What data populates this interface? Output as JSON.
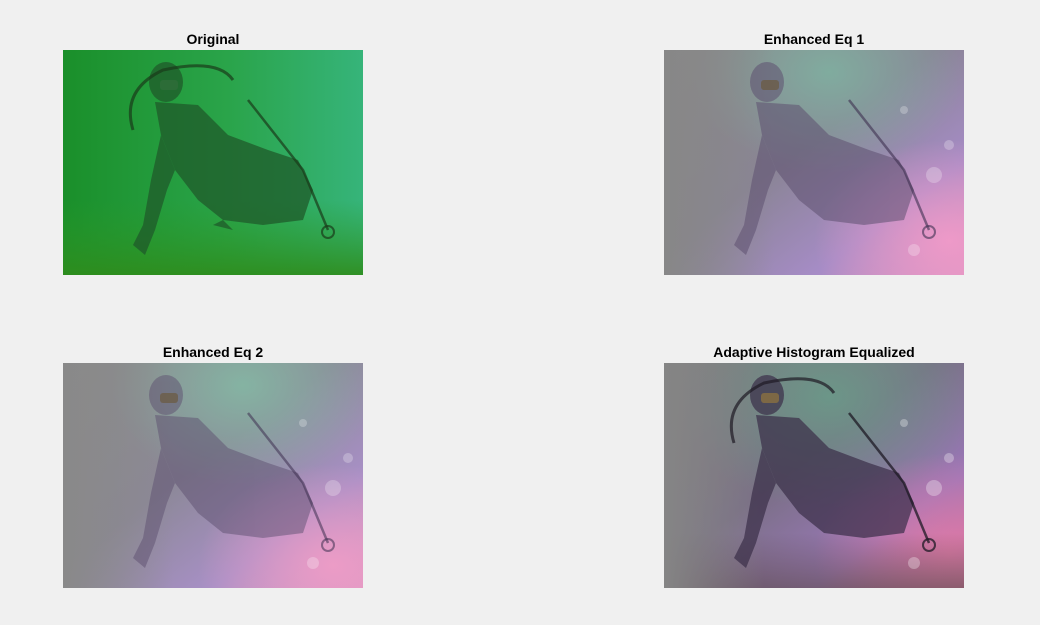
{
  "figure": {
    "background": "#f0f0f0",
    "panels": [
      {
        "id": "original",
        "title": "Original",
        "image": "underwater scuba diver photo, green tint"
      },
      {
        "id": "eq1",
        "title": "Enhanced Eq 1",
        "image": "enhanced scuba diver photo, grey-purple-pink tones"
      },
      {
        "id": "eq2",
        "title": "Enhanced Eq 2",
        "image": "enhanced scuba diver photo, grey-purple-pink tones"
      },
      {
        "id": "ahe",
        "title": "Adaptive Histogram Equalized",
        "image": "adaptive histogram equalized scuba diver photo, higher contrast"
      }
    ]
  }
}
